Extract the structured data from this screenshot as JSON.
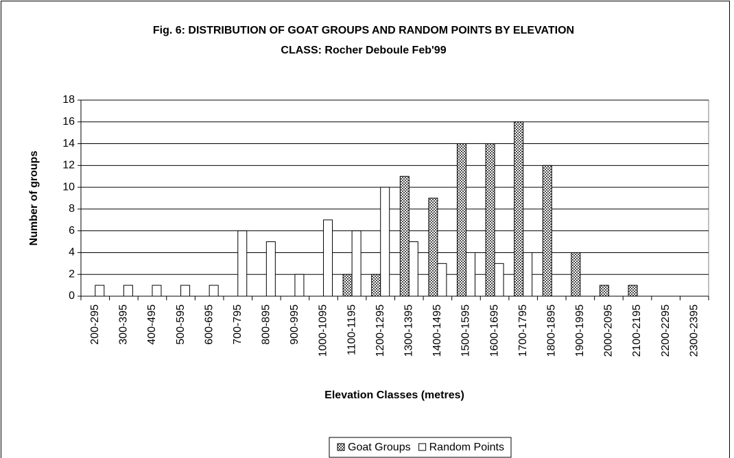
{
  "chart_data": {
    "type": "bar",
    "title": "Fig. 6: DISTRIBUTION OF GOAT GROUPS AND RANDOM POINTS BY ELEVATION CLASS: Rocher Deboule Feb'99",
    "xlabel": "Elevation Classes  (metres)",
    "ylabel": "Number  of  groups",
    "categories": [
      "200-295",
      "300-395",
      "400-495",
      "500-595",
      "600-695",
      "700-795",
      "800-895",
      "900-995",
      "1000-1095",
      "1100-1195",
      "1200-1295",
      "1300-1395",
      "1400-1495",
      "1500-1595",
      "1600-1695",
      "1700-1795",
      "1800-1895",
      "1900-1995",
      "2000-2095",
      "2100-2195",
      "2200-2295",
      "2300-2395"
    ],
    "series": [
      {
        "name": "Goat Groups",
        "color": "#4a4a4a",
        "values": [
          0,
          0,
          0,
          0,
          0,
          0,
          0,
          0,
          0,
          2,
          2,
          11,
          9,
          14,
          14,
          16,
          12,
          4,
          1,
          1,
          0,
          0
        ]
      },
      {
        "name": "Random Points",
        "color": "#ffffff",
        "values": [
          1,
          1,
          1,
          1,
          1,
          6,
          5,
          2,
          7,
          6,
          10,
          5,
          3,
          4,
          3,
          4,
          0,
          0,
          0,
          0,
          0,
          0
        ]
      }
    ],
    "ylim": [
      0,
      18
    ],
    "yticks": [
      0,
      2,
      4,
      6,
      8,
      10,
      12,
      14,
      16,
      18
    ],
    "grid": true,
    "legend": "bottom"
  }
}
